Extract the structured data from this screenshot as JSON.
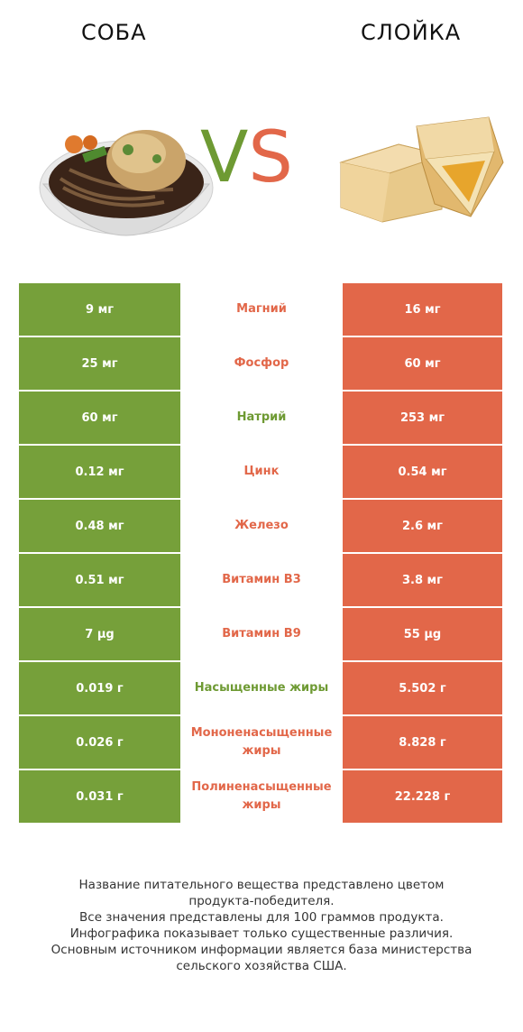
{
  "header": {
    "left_title": "СОБА",
    "right_title": "СЛОЙКА",
    "vs_v": "V",
    "vs_s": "S"
  },
  "colors": {
    "winner_left": "#76a03a",
    "winner_right": "#e26749"
  },
  "rows": [
    {
      "left": "9 мг",
      "nutrient": "Магний",
      "right": "16 мг",
      "winner": "right"
    },
    {
      "left": "25 мг",
      "nutrient": "Фосфор",
      "right": "60 мг",
      "winner": "right"
    },
    {
      "left": "60 мг",
      "nutrient": "Натрий",
      "right": "253 мг",
      "winner": "left"
    },
    {
      "left": "0.12 мг",
      "nutrient": "Цинк",
      "right": "0.54 мг",
      "winner": "right"
    },
    {
      "left": "0.48 мг",
      "nutrient": "Железо",
      "right": "2.6 мг",
      "winner": "right"
    },
    {
      "left": "0.51 мг",
      "nutrient": "Витамин B3",
      "right": "3.8 мг",
      "winner": "right"
    },
    {
      "left": "7 µg",
      "nutrient": "Витамин B9",
      "right": "55 µg",
      "winner": "right"
    },
    {
      "left": "0.019 г",
      "nutrient": "Насыщенные жиры",
      "right": "5.502 г",
      "winner": "left"
    },
    {
      "left": "0.026 г",
      "nutrient": "Мононенасыщенные жиры",
      "right": "8.828 г",
      "winner": "right"
    },
    {
      "left": "0.031 г",
      "nutrient": "Полиненасыщенные жиры",
      "right": "22.228 г",
      "winner": "right"
    }
  ],
  "footer": [
    "Название питательного вещества представлено цветом",
    "продукта-победителя.",
    "Все значения представлены для 100 граммов продукта.",
    "Инфографика показывает только существенные различия.",
    "Основным источником информации является база министерства",
    "сельского хозяйства США."
  ]
}
